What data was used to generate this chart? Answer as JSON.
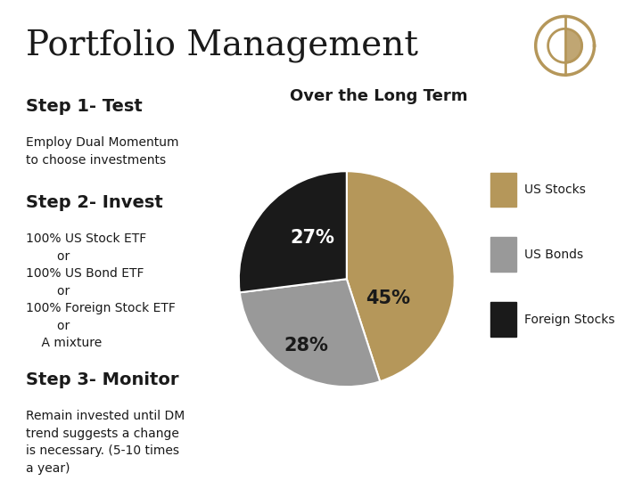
{
  "title": "Portfolio Management",
  "title_fontsize": 28,
  "title_font": "serif",
  "bg_color": "#ffffff",
  "header_line_color": "#b5975a",
  "step1_header": "Step 1- Test",
  "step1_body": "Employ Dual Momentum\nto choose investments",
  "step2_header": "Step 2- Invest",
  "step2_body": "100% US Stock ETF\n        or\n100% US Bond ETF\n        or\n100% Foreign Stock ETF\n        or\n    A mixture",
  "step3_header": "Step 3- Monitor",
  "step3_body": "Remain invested until DM\ntrend suggests a change\nis necessary. (5-10 times\na year)",
  "chart_title": "Over the Long Term",
  "pie_values": [
    45,
    28,
    27
  ],
  "pie_labels": [
    "45%",
    "28%",
    "27%"
  ],
  "pie_colors": [
    "#b5975a",
    "#999999",
    "#1a1a1a"
  ],
  "pie_legend_labels": [
    "US Stocks",
    "US Bonds",
    "Foreign Stocks"
  ],
  "legend_square_color": [
    "#b5975a",
    "#999999",
    "#1a1a1a"
  ],
  "logo_color": "#b5975a",
  "header_bold_size": 14,
  "body_size": 10,
  "chart_title_size": 13
}
